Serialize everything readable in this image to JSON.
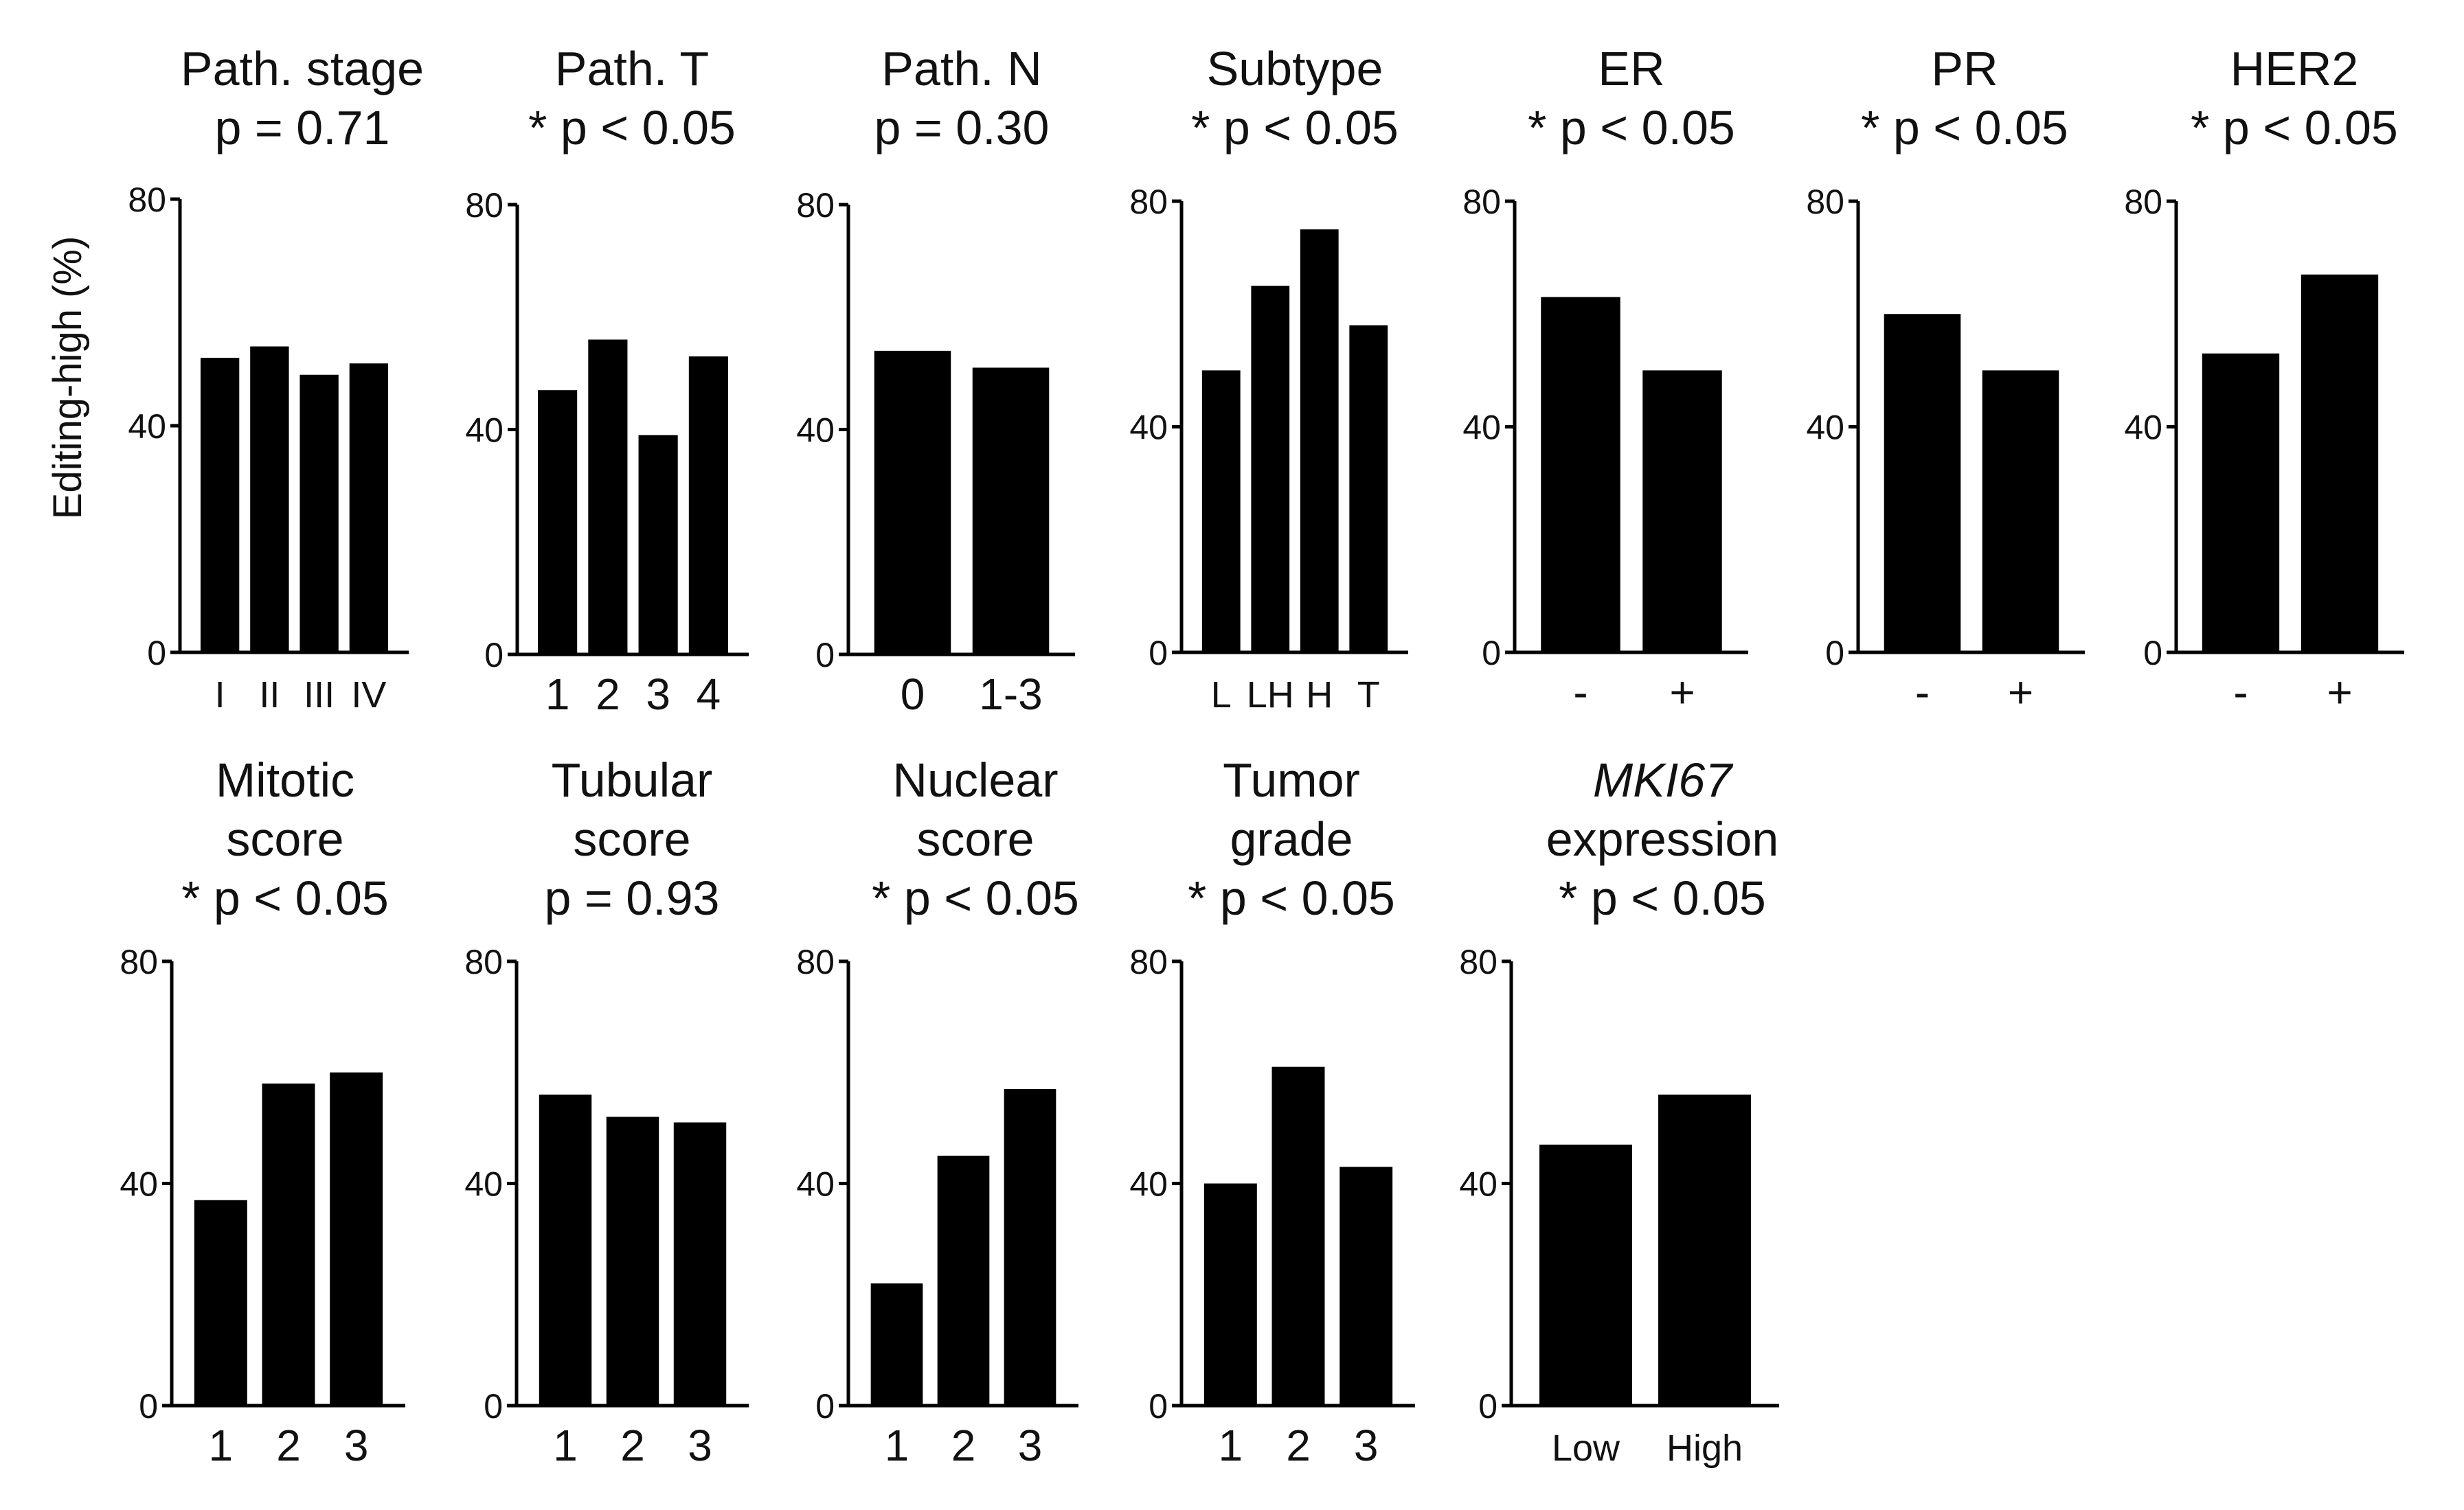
{
  "ylabel": "Editing-high  (%)",
  "chart_data": [
    {
      "type": "bar",
      "title_lines": [
        "Path. stage",
        "p = 0.71"
      ],
      "categories": [
        "I",
        "II",
        "III",
        "IV"
      ],
      "values": [
        52,
        54,
        49,
        51
      ],
      "ylim": [
        0,
        80
      ],
      "yticks": [
        "0",
        "40",
        "80"
      ]
    },
    {
      "type": "bar",
      "title_lines": [
        "Path. T",
        "* p < 0.05"
      ],
      "categories": [
        "1",
        "2",
        "3",
        "4"
      ],
      "values": [
        47,
        56,
        39,
        53
      ],
      "ylim": [
        0,
        80
      ],
      "yticks": [
        "0",
        "40",
        "80"
      ]
    },
    {
      "type": "bar",
      "title_lines": [
        "Path. N",
        "p = 0.30"
      ],
      "categories": [
        "0",
        "1-3"
      ],
      "values": [
        54,
        51
      ],
      "ylim": [
        0,
        80
      ],
      "yticks": [
        "0",
        "40",
        "80"
      ]
    },
    {
      "type": "bar",
      "title_lines": [
        "Subtype",
        "* p < 0.05"
      ],
      "categories": [
        "L",
        "LH",
        "H",
        "T"
      ],
      "values": [
        50,
        65,
        75,
        58
      ],
      "ylim": [
        0,
        80
      ],
      "yticks": [
        "0",
        "40",
        "80"
      ]
    },
    {
      "type": "bar",
      "title_lines": [
        "ER",
        "* p < 0.05"
      ],
      "categories": [
        "-",
        "+"
      ],
      "values": [
        63,
        50
      ],
      "ylim": [
        0,
        80
      ],
      "yticks": [
        "0",
        "40",
        "80"
      ]
    },
    {
      "type": "bar",
      "title_lines": [
        "PR",
        "* p < 0.05"
      ],
      "categories": [
        "-",
        "+"
      ],
      "values": [
        60,
        50
      ],
      "ylim": [
        0,
        80
      ],
      "yticks": [
        "0",
        "40",
        "80"
      ]
    },
    {
      "type": "bar",
      "title_lines": [
        "HER2",
        "* p < 0.05"
      ],
      "categories": [
        "-",
        "+"
      ],
      "values": [
        53,
        67
      ],
      "ylim": [
        0,
        80
      ],
      "yticks": [
        "0",
        "40",
        "80"
      ]
    },
    {
      "type": "bar",
      "title_lines": [
        "Mitotic",
        "score",
        "* p < 0.05"
      ],
      "categories": [
        "1",
        "2",
        "3"
      ],
      "values": [
        37,
        58,
        60
      ],
      "ylim": [
        0,
        80
      ],
      "yticks": [
        "0",
        "40",
        "80"
      ]
    },
    {
      "type": "bar",
      "title_lines": [
        "Tubular",
        "score",
        "p = 0.93"
      ],
      "categories": [
        "1",
        "2",
        "3"
      ],
      "values": [
        56,
        52,
        51
      ],
      "ylim": [
        0,
        80
      ],
      "yticks": [
        "0",
        "40",
        "80"
      ]
    },
    {
      "type": "bar",
      "title_lines": [
        "Nuclear",
        "score",
        "* p < 0.05"
      ],
      "categories": [
        "1",
        "2",
        "3"
      ],
      "values": [
        22,
        45,
        57
      ],
      "ylim": [
        0,
        80
      ],
      "yticks": [
        "0",
        "40",
        "80"
      ]
    },
    {
      "type": "bar",
      "title_lines": [
        "Tumor",
        "grade",
        "* p < 0.05"
      ],
      "categories": [
        "1",
        "2",
        "3"
      ],
      "values": [
        40,
        61,
        43
      ],
      "ylim": [
        0,
        80
      ],
      "yticks": [
        "0",
        "40",
        "80"
      ]
    },
    {
      "type": "bar",
      "title_lines": [
        "MKI67",
        "expression",
        "* p < 0.05"
      ],
      "italic_lines": [
        0
      ],
      "categories": [
        "Low",
        "High"
      ],
      "values": [
        47,
        56
      ],
      "ylim": [
        0,
        80
      ],
      "yticks": [
        "0",
        "40",
        "80"
      ]
    }
  ]
}
